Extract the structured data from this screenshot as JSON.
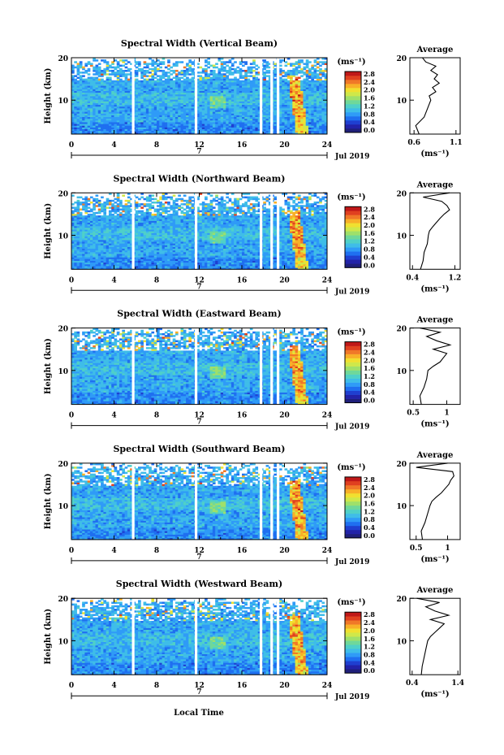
{
  "figure": {
    "date_label": "Jul 2019",
    "date_marker": "7",
    "xlabel": "Local Time",
    "ylabel": "Height (km)",
    "colorbar_unit": "(ms⁻¹)",
    "average_title": "Average",
    "average_xlabel": "(ms⁻¹)"
  },
  "colors": [
    "#1f1f7a",
    "#2222a8",
    "#1f3fd0",
    "#1f6ff0",
    "#2f9bf7",
    "#3fbde8",
    "#4fd0c8",
    "#6fd89a",
    "#9fe06a",
    "#cfe84a",
    "#f0e030",
    "#f8b028",
    "#f07828",
    "#e04020",
    "#c01818"
  ],
  "chart_data": [
    {
      "type": "heatmap",
      "title": "Spectral Width (Vertical Beam)",
      "xlabel": "Local Time",
      "ylabel": "Height (km)",
      "xlim": [
        0,
        24
      ],
      "ylim": [
        2,
        20
      ],
      "xticks": [
        0,
        4,
        8,
        12,
        16,
        20,
        24
      ],
      "yticks": [
        10,
        20
      ],
      "colorbar_ticks": [
        "0.0",
        "0.4",
        "0.8",
        "1.2",
        "1.6",
        "2.0",
        "2.4",
        "2.8"
      ],
      "data_gaps_hours": [
        5.8,
        11.7,
        17.8,
        18.8,
        19.4
      ],
      "average_profile": {
        "title": "Average",
        "xlabel": "(ms⁻¹)",
        "xticks": [
          0.6,
          1.1
        ],
        "xlim": [
          0.55,
          1.15
        ],
        "yticks": [
          10,
          20
        ],
        "heights": [
          2,
          4,
          6,
          8,
          10,
          11,
          12,
          13,
          14,
          15,
          16,
          17,
          18,
          19,
          20
        ],
        "values": [
          0.66,
          0.62,
          0.72,
          0.76,
          0.8,
          0.78,
          0.86,
          0.82,
          0.9,
          0.84,
          0.88,
          0.8,
          0.86,
          0.74,
          0.7
        ]
      }
    },
    {
      "type": "heatmap",
      "title": "Spectral Width (Northward Beam)",
      "xlabel": "Local Time",
      "ylabel": "Height (km)",
      "xlim": [
        0,
        24
      ],
      "ylim": [
        2,
        20
      ],
      "xticks": [
        0,
        4,
        8,
        12,
        16,
        20,
        24
      ],
      "yticks": [
        10,
        20
      ],
      "colorbar_ticks": [
        "0.0",
        "0.4",
        "0.8",
        "1.2",
        "1.6",
        "2.0",
        "2.4",
        "2.8"
      ],
      "data_gaps_hours": [
        5.8,
        11.7,
        17.8,
        18.8,
        19.4
      ],
      "average_profile": {
        "title": "Average",
        "xlabel": "(ms⁻¹)",
        "xticks": [
          0.4,
          1.2
        ],
        "xlim": [
          0.35,
          1.3
        ],
        "yticks": [
          10,
          20
        ],
        "heights": [
          2,
          4,
          6,
          8,
          10,
          11,
          12,
          13,
          14,
          15,
          16,
          17,
          18,
          19,
          20
        ],
        "values": [
          0.55,
          0.6,
          0.62,
          0.68,
          0.7,
          0.72,
          0.78,
          0.85,
          0.92,
          1.0,
          1.1,
          1.05,
          0.95,
          0.6,
          1.1
        ]
      }
    },
    {
      "type": "heatmap",
      "title": "Spectral Width (Eastward Beam)",
      "xlabel": "Local Time",
      "ylabel": "Height (km)",
      "xlim": [
        0,
        24
      ],
      "ylim": [
        2,
        20
      ],
      "xticks": [
        0,
        4,
        8,
        12,
        16,
        20,
        24
      ],
      "yticks": [
        10,
        20
      ],
      "colorbar_ticks": [
        "0.0",
        "0.4",
        "0.8",
        "1.2",
        "1.6",
        "2.0",
        "2.4",
        "2.8"
      ],
      "data_gaps_hours": [
        5.8,
        11.7,
        17.8,
        18.8,
        19.4
      ],
      "average_profile": {
        "title": "Average",
        "xlabel": "(ms⁻¹)",
        "xticks": [
          0.5,
          1.0
        ],
        "xlim": [
          0.45,
          1.2
        ],
        "yticks": [
          10,
          20
        ],
        "heights": [
          2,
          4,
          6,
          8,
          10,
          11,
          12,
          13,
          14,
          15,
          16,
          17,
          18,
          19,
          20
        ],
        "values": [
          0.62,
          0.6,
          0.66,
          0.7,
          0.72,
          0.8,
          0.9,
          0.95,
          1.0,
          0.8,
          1.05,
          0.85,
          0.7,
          0.9,
          0.6
        ]
      }
    },
    {
      "type": "heatmap",
      "title": "Spectral Width (Southward Beam)",
      "xlabel": "Local Time",
      "ylabel": "Height (km)",
      "xlim": [
        0,
        24
      ],
      "ylim": [
        2,
        20
      ],
      "xticks": [
        0,
        4,
        8,
        12,
        16,
        20,
        24
      ],
      "yticks": [
        10,
        20
      ],
      "colorbar_ticks": [
        "0.0",
        "0.4",
        "0.8",
        "1.2",
        "1.6",
        "2.0",
        "2.4",
        "2.8"
      ],
      "data_gaps_hours": [
        5.8,
        11.7,
        17.8,
        18.8,
        19.4
      ],
      "average_profile": {
        "title": "Average",
        "xlabel": "(ms⁻¹)",
        "xticks": [
          0.5,
          1.0
        ],
        "xlim": [
          0.4,
          1.2
        ],
        "yticks": [
          10,
          20
        ],
        "heights": [
          2,
          4,
          6,
          8,
          10,
          11,
          12,
          13,
          14,
          15,
          16,
          17,
          18,
          19,
          20
        ],
        "values": [
          0.6,
          0.58,
          0.64,
          0.68,
          0.72,
          0.75,
          0.82,
          0.9,
          0.96,
          1.02,
          1.05,
          1.1,
          1.08,
          0.5,
          1.0
        ]
      }
    },
    {
      "type": "heatmap",
      "title": "Spectral Width (Westward Beam)",
      "xlabel": "Local Time",
      "ylabel": "Height (km)",
      "xlim": [
        0,
        24
      ],
      "ylim": [
        2,
        20
      ],
      "xticks": [
        0,
        4,
        8,
        12,
        16,
        20,
        24
      ],
      "yticks": [
        10,
        20
      ],
      "colorbar_ticks": [
        "0.0",
        "0.4",
        "0.8",
        "1.2",
        "1.6",
        "2.0",
        "2.4",
        "2.8"
      ],
      "data_gaps_hours": [
        5.8,
        11.7,
        17.8,
        18.8,
        19.4
      ],
      "average_profile": {
        "title": "Average",
        "xlabel": "(ms⁻¹)",
        "xticks": [
          0.4,
          1.4
        ],
        "xlim": [
          0.35,
          1.45
        ],
        "yticks": [
          10,
          20
        ],
        "heights": [
          2,
          4,
          6,
          8,
          10,
          11,
          12,
          13,
          14,
          15,
          16,
          17,
          18,
          19,
          20
        ],
        "values": [
          0.6,
          0.62,
          0.66,
          0.7,
          0.74,
          0.8,
          0.9,
          1.0,
          1.1,
          0.8,
          1.2,
          0.9,
          0.7,
          1.0,
          0.5
        ]
      }
    }
  ]
}
